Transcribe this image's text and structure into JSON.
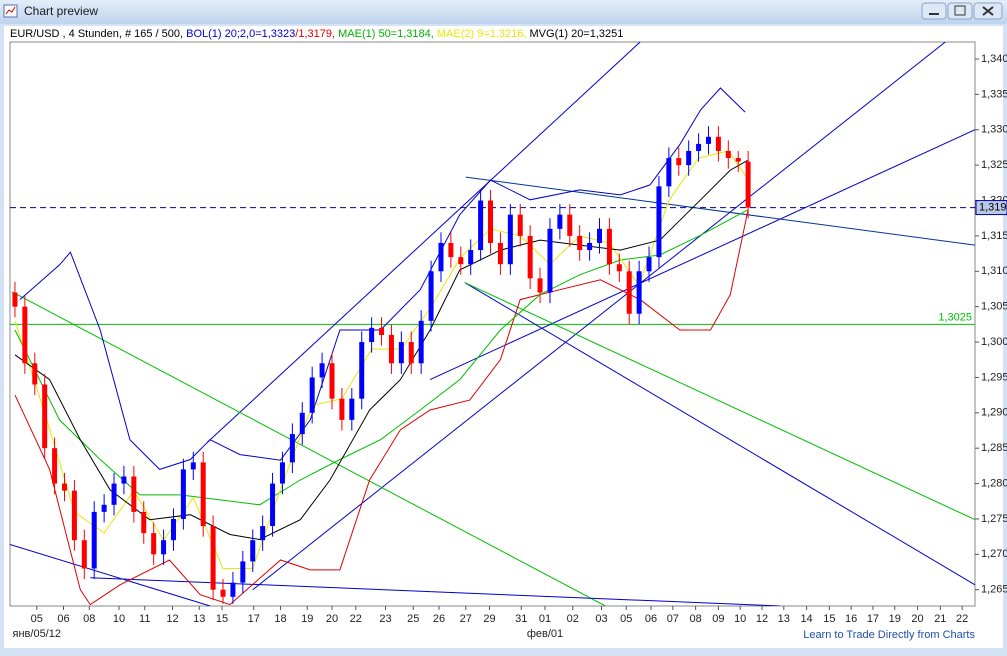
{
  "window": {
    "title": "Chart preview",
    "link": "Learn to Trade Directly from Charts"
  },
  "chart_data": {
    "type": "candlestick",
    "legend": [
      {
        "text": "EUR/USD , 4 Stunden, # 165 / 500, ",
        "color": "#000000"
      },
      {
        "text": "BOL(1) 20;2,0=1,3323",
        "color": "#0000cc"
      },
      {
        "text": "/1,3179, ",
        "color": "#e00000"
      },
      {
        "text": "MAE(1) 50=1,3184, ",
        "color": "#00b000"
      },
      {
        "text": "MAE(2) 9=1,3216, ",
        "color": "#e8e800"
      },
      {
        "text": "MVG(1) 20=1,3251",
        "color": "#000000"
      }
    ],
    "up_color": "#0000ff",
    "down_color": "#ff0000",
    "xlim": [
      -0.5,
      96.9
    ],
    "ylim": [
      1.2627,
      1.3424
    ],
    "yticks": [
      {
        "value": 1.265,
        "label": "1,265"
      },
      {
        "value": 1.27,
        "label": "1,270"
      },
      {
        "value": 1.275,
        "label": "1,275"
      },
      {
        "value": 1.28,
        "label": "1,280"
      },
      {
        "value": 1.285,
        "label": "1,285"
      },
      {
        "value": 1.29,
        "label": "1,290"
      },
      {
        "value": 1.295,
        "label": "1,295"
      },
      {
        "value": 1.3,
        "label": "1,300"
      },
      {
        "value": 1.305,
        "label": "1,305"
      },
      {
        "value": 1.31,
        "label": "1,310"
      },
      {
        "value": 1.315,
        "label": "1,315"
      },
      {
        "value": 1.32,
        "label": "1,320"
      },
      {
        "value": 1.325,
        "label": "1,325"
      },
      {
        "value": 1.33,
        "label": "1,330"
      },
      {
        "value": 1.335,
        "label": "1,335"
      },
      {
        "value": 1.34,
        "label": "1,340"
      }
    ],
    "xticks": [
      {
        "value": 2.2,
        "label": "05",
        "sublabel": "янв/05/12"
      },
      {
        "value": 4.9,
        "label": "06"
      },
      {
        "value": 7.5,
        "label": "08"
      },
      {
        "value": 10.5,
        "label": "10"
      },
      {
        "value": 13.1,
        "label": "11"
      },
      {
        "value": 15.9,
        "label": "12"
      },
      {
        "value": 18.6,
        "label": "13"
      },
      {
        "value": 20.9,
        "label": "15"
      },
      {
        "value": 24.1,
        "label": "17"
      },
      {
        "value": 26.8,
        "label": "18"
      },
      {
        "value": 29.5,
        "label": "19"
      },
      {
        "value": 32.0,
        "label": "20"
      },
      {
        "value": 34.4,
        "label": "22"
      },
      {
        "value": 37.4,
        "label": "23"
      },
      {
        "value": 40.2,
        "label": "25"
      },
      {
        "value": 42.8,
        "label": "26"
      },
      {
        "value": 45.5,
        "label": "27"
      },
      {
        "value": 47.9,
        "label": "29"
      },
      {
        "value": 51.1,
        "label": "31"
      },
      {
        "value": 53.5,
        "label": "01",
        "sublabel": "фев/01"
      },
      {
        "value": 56.3,
        "label": "02"
      },
      {
        "value": 59.2,
        "label": "03"
      },
      {
        "value": 61.7,
        "label": "05"
      },
      {
        "value": 64.2,
        "label": "06"
      },
      {
        "value": 66.4,
        "label": "07"
      },
      {
        "value": 68.7,
        "label": "08"
      },
      {
        "value": 71.0,
        "label": "09"
      },
      {
        "value": 73.2,
        "label": "10"
      },
      {
        "value": 75.4,
        "label": "12"
      },
      {
        "value": 77.6,
        "label": "13"
      },
      {
        "value": 79.9,
        "label": "14"
      },
      {
        "value": 82.2,
        "label": "15"
      },
      {
        "value": 84.4,
        "label": "16"
      },
      {
        "value": 86.6,
        "label": "17"
      },
      {
        "value": 88.8,
        "label": "19"
      },
      {
        "value": 91.1,
        "label": "20"
      },
      {
        "value": 93.4,
        "label": "21"
      },
      {
        "value": 95.6,
        "label": "22"
      }
    ],
    "candles": [
      [
        1.307,
        1.3085,
        1.3035,
        1.305
      ],
      [
        1.305,
        1.3065,
        1.2955,
        1.297
      ],
      [
        1.297,
        1.2985,
        1.2925,
        1.294
      ],
      [
        1.294,
        1.2955,
        1.2835,
        1.285
      ],
      [
        1.285,
        1.2865,
        1.2785,
        1.28
      ],
      [
        1.28,
        1.2815,
        1.2775,
        1.279
      ],
      [
        1.279,
        1.2805,
        1.2705,
        1.272
      ],
      [
        1.272,
        1.2735,
        1.2665,
        1.268
      ],
      [
        1.268,
        1.2775,
        1.2665,
        1.276
      ],
      [
        1.276,
        1.2785,
        1.2745,
        1.277
      ],
      [
        1.277,
        1.2815,
        1.2755,
        1.28
      ],
      [
        1.28,
        1.2825,
        1.2785,
        1.281
      ],
      [
        1.281,
        1.2825,
        1.2745,
        1.276
      ],
      [
        1.276,
        1.2775,
        1.2715,
        1.273
      ],
      [
        1.273,
        1.2745,
        1.2685,
        1.27
      ],
      [
        1.27,
        1.2735,
        1.2685,
        1.272
      ],
      [
        1.272,
        1.2765,
        1.2705,
        1.275
      ],
      [
        1.275,
        1.2835,
        1.2735,
        1.282
      ],
      [
        1.282,
        1.2845,
        1.2805,
        1.283
      ],
      [
        1.283,
        1.2845,
        1.2725,
        1.274
      ],
      [
        1.274,
        1.2755,
        1.2635,
        1.265
      ],
      [
        1.265,
        1.2665,
        1.263,
        1.264
      ],
      [
        1.264,
        1.2675,
        1.263,
        1.266
      ],
      [
        1.266,
        1.2705,
        1.2645,
        1.269
      ],
      [
        1.269,
        1.2735,
        1.2675,
        1.272
      ],
      [
        1.272,
        1.2755,
        1.2705,
        1.274
      ],
      [
        1.274,
        1.2815,
        1.2725,
        1.28
      ],
      [
        1.28,
        1.2845,
        1.2785,
        1.283
      ],
      [
        1.283,
        1.2885,
        1.2815,
        1.287
      ],
      [
        1.287,
        1.2915,
        1.2855,
        1.29
      ],
      [
        1.29,
        1.2965,
        1.2885,
        1.295
      ],
      [
        1.295,
        1.2985,
        1.2935,
        1.297
      ],
      [
        1.297,
        1.2985,
        1.2905,
        1.292
      ],
      [
        1.292,
        1.2935,
        1.2875,
        1.289
      ],
      [
        1.289,
        1.2935,
        1.2875,
        1.292
      ],
      [
        1.292,
        1.3015,
        1.2905,
        1.3
      ],
      [
        1.3,
        1.3035,
        1.2985,
        1.302
      ],
      [
        1.302,
        1.3035,
        1.2995,
        1.301
      ],
      [
        1.301,
        1.3025,
        1.2955,
        1.297
      ],
      [
        1.297,
        1.3015,
        1.2955,
        1.3
      ],
      [
        1.3,
        1.3015,
        1.2955,
        1.297
      ],
      [
        1.297,
        1.3045,
        1.2955,
        1.303
      ],
      [
        1.303,
        1.3115,
        1.3015,
        1.31
      ],
      [
        1.31,
        1.3155,
        1.3085,
        1.314
      ],
      [
        1.314,
        1.3155,
        1.3105,
        1.312
      ],
      [
        1.312,
        1.3135,
        1.3095,
        1.311
      ],
      [
        1.311,
        1.3145,
        1.3095,
        1.313
      ],
      [
        1.313,
        1.3215,
        1.3115,
        1.32
      ],
      [
        1.32,
        1.3215,
        1.3125,
        1.314
      ],
      [
        1.314,
        1.3155,
        1.3095,
        1.311
      ],
      [
        1.311,
        1.3195,
        1.3095,
        1.318
      ],
      [
        1.318,
        1.3195,
        1.3135,
        1.315
      ],
      [
        1.315,
        1.3165,
        1.3075,
        1.309
      ],
      [
        1.309,
        1.3105,
        1.3055,
        1.307
      ],
      [
        1.307,
        1.3175,
        1.3055,
        1.316
      ],
      [
        1.316,
        1.3195,
        1.3145,
        1.318
      ],
      [
        1.318,
        1.3195,
        1.3135,
        1.315
      ],
      [
        1.315,
        1.3165,
        1.3115,
        1.313
      ],
      [
        1.313,
        1.3155,
        1.3115,
        1.314
      ],
      [
        1.314,
        1.3175,
        1.3125,
        1.316
      ],
      [
        1.316,
        1.3175,
        1.3095,
        1.311
      ],
      [
        1.311,
        1.3125,
        1.3085,
        1.31
      ],
      [
        1.31,
        1.3115,
        1.3025,
        1.304
      ],
      [
        1.304,
        1.3115,
        1.3025,
        1.31
      ],
      [
        1.31,
        1.3135,
        1.3085,
        1.312
      ],
      [
        1.312,
        1.3235,
        1.3105,
        1.322
      ],
      [
        1.322,
        1.3275,
        1.3205,
        1.326
      ],
      [
        1.326,
        1.3275,
        1.3235,
        1.325
      ],
      [
        1.325,
        1.3285,
        1.3235,
        1.327
      ],
      [
        1.327,
        1.3295,
        1.3255,
        1.328
      ],
      [
        1.328,
        1.3305,
        1.3265,
        1.329
      ],
      [
        1.329,
        1.3305,
        1.3255,
        1.327
      ],
      [
        1.327,
        1.3285,
        1.3245,
        1.326
      ],
      [
        1.326,
        1.327,
        1.324,
        1.3255
      ],
      [
        1.3255,
        1.327,
        1.3175,
        1.319
      ]
    ],
    "series": [
      {
        "color": "#0000cc",
        "x": [
          0.5,
          4.5,
          5.6,
          8.6,
          11.6,
          14.6,
          17.7,
          19.7,
          22.7,
          26.8,
          29.8,
          32.8,
          36.9,
          40.9,
          44.9,
          48.0,
          52.0,
          57.0,
          61.1,
          64.1,
          67.1,
          69.2,
          71.2,
          73.7
        ],
        "values": [
          1.306,
          1.3109,
          1.3127,
          1.3017,
          1.2862,
          1.282,
          1.2834,
          1.2862,
          1.2841,
          1.2833,
          1.289,
          1.3017,
          1.3017,
          1.3074,
          1.318,
          1.3229,
          1.3201,
          1.3215,
          1.3208,
          1.3222,
          1.3279,
          1.3328,
          1.3359,
          1.3325
        ]
      },
      {
        "color": "#dd0000",
        "x": [
          0,
          3.5,
          6.6,
          7.6,
          10.6,
          15.6,
          18.7,
          21.7,
          26.8,
          29.8,
          32.8,
          35.8,
          38.9,
          41.9,
          45.9,
          49.0,
          51.0,
          55.0,
          59.1,
          63.1,
          67.1,
          70.2,
          72.2,
          74.0
        ],
        "values": [
          1.2925,
          1.282,
          1.265,
          1.2629,
          1.2657,
          1.2692,
          1.2643,
          1.2629,
          1.2692,
          1.2678,
          1.2678,
          1.2805,
          1.2876,
          1.2904,
          1.2918,
          1.2975,
          1.306,
          1.3074,
          1.3088,
          1.306,
          1.3017,
          1.3017,
          1.3067,
          1.3187
        ]
      },
      {
        "color": "#00c000",
        "x": [
          0,
          4.5,
          8.6,
          12.6,
          16.7,
          20.7,
          24.7,
          28.8,
          32.8,
          36.9,
          40.9,
          44.9,
          49.0,
          53.0,
          57.0,
          61.1,
          65.1,
          69.2,
          74.0
        ],
        "values": [
          1.3017,
          1.289,
          1.2834,
          1.2784,
          1.2784,
          1.2777,
          1.277,
          1.2805,
          1.2834,
          1.2862,
          1.2904,
          1.2947,
          1.3017,
          1.3067,
          1.3095,
          1.3116,
          1.3123,
          1.3151,
          1.3187
        ]
      },
      {
        "color": "#e8e800",
        "x": [
          0,
          3,
          6,
          9,
          12,
          15,
          18,
          21,
          24,
          27,
          30,
          33,
          36,
          39,
          42,
          45,
          48,
          51,
          54,
          57,
          60,
          63,
          66,
          69,
          72,
          74
        ],
        "values": [
          1.303,
          1.29,
          1.276,
          1.273,
          1.279,
          1.272,
          1.278,
          1.268,
          1.268,
          1.28,
          1.291,
          1.292,
          1.299,
          1.299,
          1.305,
          1.312,
          1.316,
          1.315,
          1.311,
          1.315,
          1.314,
          1.308,
          1.32,
          1.326,
          1.327,
          1.323
        ]
      },
      {
        "color": "#000000",
        "x": [
          0,
          3.5,
          6.6,
          9.6,
          13.6,
          17.7,
          21.7,
          24.7,
          28.8,
          31.8,
          35.8,
          38.9,
          41.9,
          44.9,
          49.0,
          53.0,
          57.0,
          61.1,
          65.1,
          69.2,
          72.2,
          74.0
        ],
        "values": [
          1.2982,
          1.2947,
          1.2862,
          1.2791,
          1.2749,
          1.2756,
          1.2728,
          1.2721,
          1.2749,
          1.2805,
          1.2904,
          1.2947,
          1.3017,
          1.3102,
          1.313,
          1.3144,
          1.3137,
          1.313,
          1.3144,
          1.3201,
          1.3243,
          1.3257
        ]
      }
    ],
    "trendlines": [
      {
        "color": "#0000cc",
        "points": [
          [
            19.4,
            1.2858
          ],
          [
            63.1,
            1.3424
          ]
        ]
      },
      {
        "color": "#0000cc",
        "points": [
          [
            24.0,
            1.265
          ],
          [
            93.9,
            1.3424
          ]
        ]
      },
      {
        "color": "#0000cc",
        "points": [
          [
            41.9,
            1.2947
          ],
          [
            96.9,
            1.33
          ]
        ]
      },
      {
        "color": "#0000cc",
        "points": [
          [
            45.4,
            1.3084
          ],
          [
            96.9,
            1.2657
          ]
        ]
      },
      {
        "color": "#00c000",
        "points": [
          [
            -0.3,
            1.3071
          ],
          [
            59.6,
            1.2627
          ]
        ]
      },
      {
        "color": "#00c000",
        "points": [
          [
            45.4,
            1.3084
          ],
          [
            96.9,
            1.2749
          ]
        ]
      },
      {
        "color": "#003399",
        "points": [
          [
            45.5,
            1.3233
          ],
          [
            96.9,
            1.3137
          ]
        ]
      },
      {
        "color": "#0000cc",
        "points": [
          [
            7.6,
            1.2667
          ],
          [
            77.2,
            1.2627
          ]
        ]
      },
      {
        "color": "#0000cc",
        "points": [
          [
            -0.5,
            1.2714
          ],
          [
            19.7,
            1.2627
          ]
        ]
      }
    ],
    "hlines": [
      {
        "value": 1.3025,
        "label": "1,3025",
        "color": "#00c000",
        "dashed": false
      },
      {
        "value": 1.319,
        "label": "1,319",
        "color": "#000099",
        "dashed": true
      }
    ]
  }
}
